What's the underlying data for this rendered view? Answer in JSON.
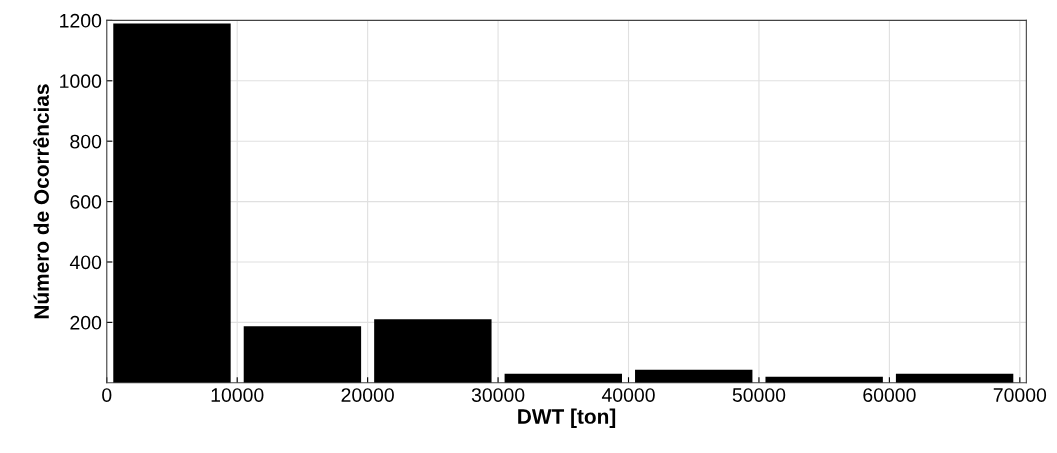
{
  "chart_data": {
    "type": "histogram",
    "xlabel": "DWT [ton]",
    "ylabel": "Número de Ocorrências",
    "bins": [
      0,
      10000,
      20000,
      30000,
      40000,
      50000,
      60000,
      70000
    ],
    "values": [
      1190,
      187,
      210,
      30,
      43,
      20,
      30
    ],
    "color": "#000000",
    "xlim": [
      0,
      70500
    ],
    "xticks": [
      0,
      10000,
      20000,
      30000,
      40000,
      50000,
      60000,
      70000
    ],
    "ylim": [
      0,
      1200
    ],
    "yticks": [
      200,
      400,
      600,
      800,
      1000,
      1200
    ],
    "grid": true
  }
}
